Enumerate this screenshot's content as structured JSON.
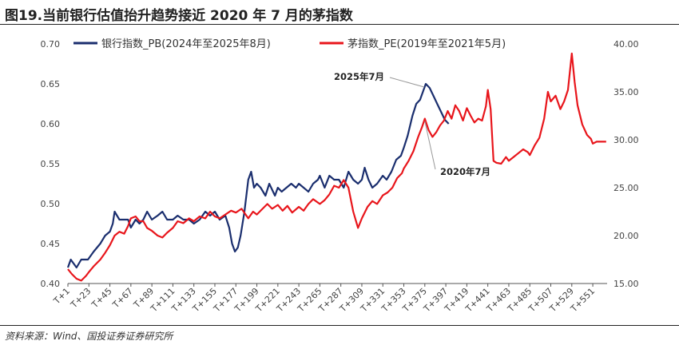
{
  "header": {
    "title": "图19.当前银行估值抬升趋势接近 2020 年 7 月的茅指数"
  },
  "footer": {
    "source": "资料来源：Wind、国投证券证券研究所"
  },
  "chart_data": {
    "type": "line",
    "categories": [
      "T+1",
      "T+23",
      "T+45",
      "T+67",
      "T+89",
      "T+111",
      "T+133",
      "T+155",
      "T+177",
      "T+199",
      "T+221",
      "T+243",
      "T+265",
      "T+287",
      "T+309",
      "T+331",
      "T+353",
      "T+375",
      "T+397",
      "T+419",
      "T+441",
      "T+463",
      "T+485",
      "T+507",
      "T+529",
      "T+551"
    ],
    "y_left": {
      "ticks": [
        "0.40",
        "0.45",
        "0.50",
        "0.55",
        "0.60",
        "0.65",
        "0.70"
      ],
      "ylim": [
        0.4,
        0.7
      ]
    },
    "y_right": {
      "ticks": [
        "15.00",
        "20.00",
        "25.00",
        "30.00",
        "35.00",
        "40.00"
      ],
      "ylim": [
        15,
        40
      ]
    },
    "series": [
      {
        "name": "银行指数_PB(2024年至2025年8月)",
        "color": "#1a2e6e",
        "axis": "left",
        "points": [
          [
            1,
            0.42
          ],
          [
            4,
            0.43
          ],
          [
            10,
            0.42
          ],
          [
            15,
            0.43
          ],
          [
            22,
            0.43
          ],
          [
            28,
            0.44
          ],
          [
            35,
            0.45
          ],
          [
            40,
            0.46
          ],
          [
            45,
            0.465
          ],
          [
            48,
            0.475
          ],
          [
            50,
            0.49
          ],
          [
            55,
            0.48
          ],
          [
            60,
            0.48
          ],
          [
            64,
            0.48
          ],
          [
            67,
            0.47
          ],
          [
            72,
            0.48
          ],
          [
            76,
            0.475
          ],
          [
            80,
            0.48
          ],
          [
            84,
            0.49
          ],
          [
            89,
            0.48
          ],
          [
            95,
            0.485
          ],
          [
            100,
            0.49
          ],
          [
            105,
            0.48
          ],
          [
            111,
            0.48
          ],
          [
            116,
            0.485
          ],
          [
            122,
            0.48
          ],
          [
            128,
            0.48
          ],
          [
            133,
            0.475
          ],
          [
            139,
            0.48
          ],
          [
            145,
            0.49
          ],
          [
            150,
            0.485
          ],
          [
            155,
            0.49
          ],
          [
            160,
            0.48
          ],
          [
            166,
            0.485
          ],
          [
            170,
            0.47
          ],
          [
            173,
            0.45
          ],
          [
            176,
            0.44
          ],
          [
            179,
            0.445
          ],
          [
            182,
            0.46
          ],
          [
            186,
            0.49
          ],
          [
            190,
            0.53
          ],
          [
            193,
            0.54
          ],
          [
            196,
            0.52
          ],
          [
            199,
            0.525
          ],
          [
            203,
            0.52
          ],
          [
            208,
            0.51
          ],
          [
            212,
            0.525
          ],
          [
            218,
            0.51
          ],
          [
            221,
            0.52
          ],
          [
            225,
            0.515
          ],
          [
            230,
            0.52
          ],
          [
            235,
            0.525
          ],
          [
            240,
            0.52
          ],
          [
            243,
            0.525
          ],
          [
            248,
            0.52
          ],
          [
            253,
            0.515
          ],
          [
            258,
            0.525
          ],
          [
            263,
            0.53
          ],
          [
            265,
            0.535
          ],
          [
            270,
            0.52
          ],
          [
            275,
            0.535
          ],
          [
            280,
            0.53
          ],
          [
            285,
            0.53
          ],
          [
            290,
            0.52
          ],
          [
            295,
            0.54
          ],
          [
            300,
            0.53
          ],
          [
            305,
            0.525
          ],
          [
            309,
            0.53
          ],
          [
            312,
            0.545
          ],
          [
            316,
            0.53
          ],
          [
            320,
            0.52
          ],
          [
            325,
            0.525
          ],
          [
            331,
            0.535
          ],
          [
            335,
            0.53
          ],
          [
            340,
            0.54
          ],
          [
            345,
            0.555
          ],
          [
            350,
            0.56
          ],
          [
            353,
            0.57
          ],
          [
            357,
            0.585
          ],
          [
            362,
            0.61
          ],
          [
            366,
            0.625
          ],
          [
            370,
            0.63
          ],
          [
            373,
            0.64
          ],
          [
            376,
            0.65
          ],
          [
            380,
            0.645
          ],
          [
            384,
            0.635
          ],
          [
            388,
            0.625
          ],
          [
            392,
            0.615
          ],
          [
            396,
            0.605
          ],
          [
            400,
            0.6
          ]
        ]
      },
      {
        "name": "茅指数_PE(2019年至2021年5月)",
        "color": "#e8151b",
        "axis": "right",
        "points": [
          [
            1,
            16.5
          ],
          [
            5,
            16.0
          ],
          [
            10,
            15.5
          ],
          [
            15,
            15.3
          ],
          [
            20,
            15.8
          ],
          [
            23,
            16.2
          ],
          [
            28,
            16.8
          ],
          [
            35,
            17.5
          ],
          [
            40,
            18.2
          ],
          [
            45,
            19.0
          ],
          [
            50,
            20.0
          ],
          [
            55,
            20.4
          ],
          [
            60,
            20.2
          ],
          [
            64,
            21.0
          ],
          [
            67,
            21.8
          ],
          [
            72,
            22.0
          ],
          [
            76,
            21.5
          ],
          [
            80,
            21.5
          ],
          [
            84,
            20.8
          ],
          [
            89,
            20.5
          ],
          [
            95,
            20.0
          ],
          [
            100,
            19.8
          ],
          [
            105,
            20.3
          ],
          [
            111,
            20.8
          ],
          [
            116,
            21.5
          ],
          [
            122,
            21.3
          ],
          [
            128,
            21.8
          ],
          [
            133,
            21.5
          ],
          [
            139,
            22.0
          ],
          [
            145,
            21.8
          ],
          [
            150,
            22.5
          ],
          [
            155,
            22.0
          ],
          [
            160,
            21.8
          ],
          [
            166,
            22.2
          ],
          [
            172,
            22.6
          ],
          [
            177,
            22.4
          ],
          [
            183,
            22.8
          ],
          [
            190,
            21.8
          ],
          [
            195,
            22.5
          ],
          [
            199,
            22.2
          ],
          [
            205,
            22.8
          ],
          [
            210,
            23.3
          ],
          [
            215,
            22.8
          ],
          [
            221,
            23.2
          ],
          [
            226,
            22.6
          ],
          [
            231,
            23.1
          ],
          [
            236,
            22.4
          ],
          [
            243,
            23.0
          ],
          [
            248,
            22.6
          ],
          [
            253,
            23.3
          ],
          [
            258,
            23.8
          ],
          [
            265,
            23.3
          ],
          [
            270,
            23.7
          ],
          [
            275,
            24.3
          ],
          [
            280,
            25.2
          ],
          [
            285,
            25.0
          ],
          [
            290,
            25.8
          ],
          [
            295,
            25.0
          ],
          [
            300,
            22.5
          ],
          [
            305,
            20.8
          ],
          [
            309,
            21.8
          ],
          [
            315,
            23.0
          ],
          [
            320,
            23.6
          ],
          [
            325,
            23.3
          ],
          [
            331,
            24.2
          ],
          [
            336,
            24.5
          ],
          [
            341,
            25.0
          ],
          [
            346,
            26.0
          ],
          [
            351,
            26.5
          ],
          [
            353,
            27.0
          ],
          [
            358,
            27.8
          ],
          [
            363,
            28.8
          ],
          [
            368,
            30.3
          ],
          [
            372,
            31.3
          ],
          [
            375,
            32.2
          ],
          [
            379,
            31.0
          ],
          [
            383,
            30.3
          ],
          [
            387,
            30.8
          ],
          [
            391,
            31.5
          ],
          [
            395,
            32.0
          ],
          [
            399,
            33.0
          ],
          [
            403,
            32.2
          ],
          [
            407,
            33.6
          ],
          [
            411,
            33.0
          ],
          [
            415,
            32.0
          ],
          [
            419,
            33.3
          ],
          [
            423,
            32.5
          ],
          [
            427,
            31.8
          ],
          [
            431,
            32.2
          ],
          [
            435,
            32.0
          ],
          [
            439,
            33.5
          ],
          [
            441,
            35.2
          ],
          [
            444,
            33.2
          ],
          [
            447,
            27.8
          ],
          [
            450,
            27.6
          ],
          [
            455,
            27.5
          ],
          [
            460,
            28.2
          ],
          [
            463,
            27.8
          ],
          [
            468,
            28.2
          ],
          [
            473,
            28.6
          ],
          [
            478,
            29.0
          ],
          [
            483,
            28.7
          ],
          [
            485,
            28.4
          ],
          [
            490,
            29.4
          ],
          [
            495,
            30.2
          ],
          [
            500,
            32.2
          ],
          [
            504,
            35.0
          ],
          [
            507,
            34.0
          ],
          [
            512,
            34.6
          ],
          [
            517,
            33.2
          ],
          [
            521,
            34.0
          ],
          [
            525,
            35.2
          ],
          [
            529,
            39.0
          ],
          [
            532,
            36.0
          ],
          [
            535,
            33.6
          ],
          [
            540,
            31.6
          ],
          [
            545,
            30.5
          ],
          [
            549,
            30.1
          ],
          [
            551,
            29.6
          ],
          [
            555,
            29.8
          ],
          [
            560,
            29.8
          ],
          [
            565,
            29.8
          ]
        ]
      }
    ],
    "annotations": [
      {
        "text": "2025年7月",
        "series": 0,
        "x": 376
      },
      {
        "text": "2020年7月",
        "series": 1,
        "x": 375
      }
    ]
  }
}
